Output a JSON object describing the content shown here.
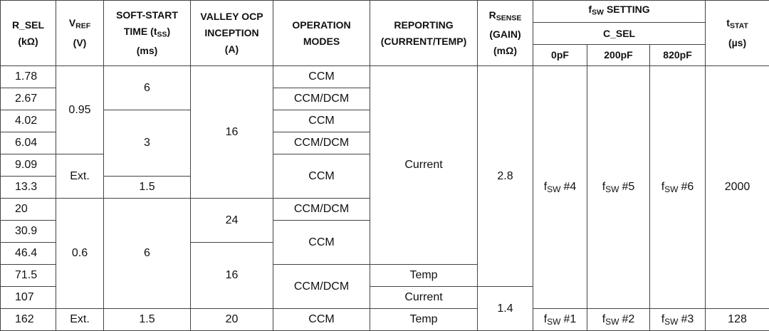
{
  "header": {
    "r_sel": {
      "name": "R_SEL",
      "unit": "(kΩ)"
    },
    "vref": {
      "symbol": "V",
      "subscript": "REF",
      "unit": "(V)"
    },
    "soft_start": {
      "line1": "SOFT-START",
      "prefix": "TIME (t",
      "subscript": "SS",
      "suffix": ")",
      "unit": "(ms)"
    },
    "ocp": {
      "line1": "VALLEY OCP",
      "line2": "INCEPTION",
      "unit": "(A)"
    },
    "modes": {
      "line1": "OPERATION",
      "line2": "MODES"
    },
    "reporting": {
      "line1": "REPORTING",
      "line2": "(CURRENT/TEMP)"
    },
    "rsense": {
      "symbol": "R",
      "subscript": "SENSE",
      "line2": "(GAIN)",
      "unit": "(mΩ)"
    },
    "fsw_setting": {
      "symbol": "f",
      "subscript": "SW",
      "label": "SETTING"
    },
    "c_sel": "C_SEL",
    "caps": [
      "0pF",
      "200pF",
      "820pF"
    ],
    "tstat": {
      "symbol": "t",
      "subscript": "STAT",
      "unit": "(µs)"
    }
  },
  "rows": [
    [
      "1.78",
      "0.95",
      "6",
      "16",
      "CCM",
      "Current",
      "2.8",
      {
        "symbol": "f",
        "subscript": "SW",
        "label": "#4"
      },
      {
        "symbol": "f",
        "subscript": "SW",
        "label": "#5"
      },
      {
        "symbol": "f",
        "subscript": "SW",
        "label": "#6"
      },
      "2000"
    ],
    [
      "2.67",
      "CCM/DCM"
    ],
    [
      "4.02",
      "3",
      "CCM"
    ],
    [
      "6.04",
      "CCM/DCM"
    ],
    [
      "9.09",
      "Ext.",
      "CCM"
    ],
    [
      "13.3",
      "1.5"
    ],
    [
      "20",
      "0.6",
      "6",
      "24",
      "CCM/DCM"
    ],
    [
      "30.9",
      "CCM"
    ],
    [
      "46.4",
      "16"
    ],
    [
      "71.5",
      "CCM/DCM",
      "Temp"
    ],
    [
      "107",
      "Current",
      "1.4"
    ],
    [
      "162",
      "Ext.",
      "1.5",
      "20",
      "CCM",
      "Temp",
      {
        "symbol": "f",
        "subscript": "SW",
        "label": "#1"
      },
      {
        "symbol": "f",
        "subscript": "SW",
        "label": "#2"
      },
      {
        "symbol": "f",
        "subscript": "SW",
        "label": "#3"
      },
      "128"
    ]
  ]
}
